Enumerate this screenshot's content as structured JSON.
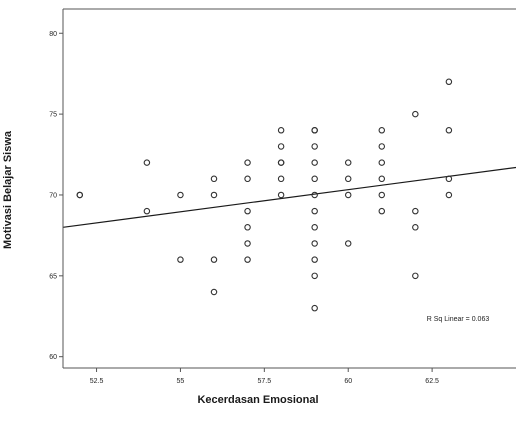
{
  "chart_data": {
    "type": "scatter",
    "title": "",
    "xlabel": "Kecerdasan Emosional",
    "ylabel": "Motivasi Belajar Siswa",
    "xlim": [
      51.5,
      65
    ],
    "ylim": [
      59.3,
      81.5
    ],
    "xticks": [
      52.5,
      55,
      57.5,
      60,
      62.5
    ],
    "xtick_labels": [
      "52.5",
      "55",
      "57.5",
      "60",
      "62.5"
    ],
    "yticks": [
      60,
      65,
      70,
      75,
      80
    ],
    "ytick_labels": [
      "60",
      "65",
      "70",
      "75",
      "80"
    ],
    "grid": false,
    "legend": "none",
    "marker": "open-circle",
    "colors": {
      "frame": "#555555",
      "point": "#333333",
      "line": "#1a1a1a",
      "background": "#ffffff"
    },
    "fit_line": {
      "x": [
        51.5,
        65
      ],
      "y": [
        68.0,
        71.7
      ]
    },
    "annotation": "R Sq Linear = 0.063",
    "points": [
      [
        52,
        70
      ],
      [
        52,
        70
      ],
      [
        54,
        72
      ],
      [
        54,
        69
      ],
      [
        55,
        70
      ],
      [
        55,
        66
      ],
      [
        56,
        71
      ],
      [
        56,
        70
      ],
      [
        56,
        66
      ],
      [
        56,
        64
      ],
      [
        57,
        72
      ],
      [
        57,
        71
      ],
      [
        57,
        69
      ],
      [
        57,
        68
      ],
      [
        57,
        67
      ],
      [
        57,
        66
      ],
      [
        58,
        74
      ],
      [
        58,
        73
      ],
      [
        58,
        72
      ],
      [
        58,
        72
      ],
      [
        58,
        71
      ],
      [
        58,
        70
      ],
      [
        59,
        74
      ],
      [
        59,
        74
      ],
      [
        59,
        73
      ],
      [
        59,
        72
      ],
      [
        59,
        71
      ],
      [
        59,
        70
      ],
      [
        59,
        69
      ],
      [
        59,
        68
      ],
      [
        59,
        67
      ],
      [
        59,
        66
      ],
      [
        59,
        65
      ],
      [
        59,
        63
      ],
      [
        60,
        72
      ],
      [
        60,
        71
      ],
      [
        60,
        70
      ],
      [
        60,
        67
      ],
      [
        61,
        74
      ],
      [
        61,
        73
      ],
      [
        61,
        72
      ],
      [
        61,
        71
      ],
      [
        61,
        70
      ],
      [
        61,
        69
      ],
      [
        62,
        75
      ],
      [
        62,
        69
      ],
      [
        62,
        68
      ],
      [
        62,
        65
      ],
      [
        63,
        77
      ],
      [
        63,
        74
      ],
      [
        63,
        71
      ],
      [
        63,
        70
      ]
    ]
  }
}
